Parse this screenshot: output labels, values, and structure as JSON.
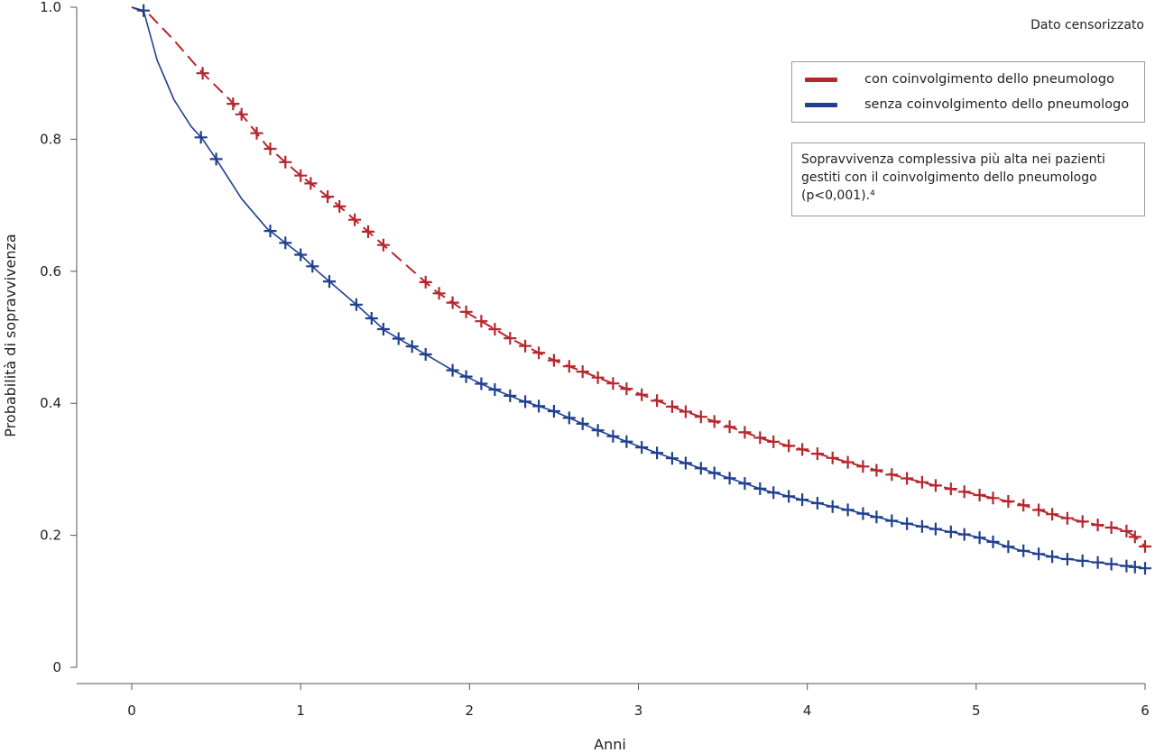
{
  "chart_data": {
    "type": "line",
    "xlabel": "Anni",
    "ylabel": "Probabilità di sopravvivenza",
    "xlim": [
      0,
      6
    ],
    "ylim": [
      0,
      1
    ],
    "xticks": [
      "0",
      "1",
      "2",
      "3",
      "4",
      "5",
      "6"
    ],
    "yticks": [
      "0",
      "0.2",
      "0.4",
      "0.6",
      "0.8",
      "1.0"
    ],
    "ytick_values": [
      0,
      0.2,
      0.4,
      0.6,
      0.8,
      1.0
    ],
    "grid": false,
    "legend_position": "top-right",
    "censor_note": "Dato censorizzato",
    "annotation": "Sopravvivenza complessiva più alta nei pazienti gestiti con il coinvolgimento dello pneumologo (p<0,001).⁴",
    "series": [
      {
        "name": "con coinvolgimento dello pneumologo",
        "color": "#b5272d",
        "line_style": "dashed",
        "x": [
          0,
          0.1,
          0.25,
          0.42,
          0.58,
          0.8,
          1.0,
          1.2,
          1.4,
          1.6,
          1.8,
          2.0,
          2.25,
          2.5,
          2.75,
          3.0,
          3.25,
          3.5,
          3.75,
          4.0,
          4.25,
          4.5,
          4.75,
          5.0,
          5.25,
          5.5,
          5.75,
          5.88,
          5.93,
          6.0
        ],
        "y": [
          1.0,
          0.99,
          0.95,
          0.9,
          0.86,
          0.79,
          0.745,
          0.705,
          0.66,
          0.615,
          0.57,
          0.535,
          0.497,
          0.465,
          0.44,
          0.415,
          0.39,
          0.368,
          0.345,
          0.328,
          0.31,
          0.292,
          0.276,
          0.262,
          0.248,
          0.228,
          0.214,
          0.208,
          0.2,
          0.183
        ],
        "censored_x": [
          0.42,
          0.6,
          0.65,
          0.74,
          0.82,
          0.91,
          1.0,
          1.06,
          1.16,
          1.23,
          1.32,
          1.4,
          1.49,
          1.74,
          1.82,
          1.9,
          1.98,
          2.07,
          2.15,
          2.24,
          2.33,
          2.41,
          2.5,
          2.59,
          2.67,
          2.76,
          2.85,
          2.93,
          3.02,
          3.11,
          3.2,
          3.28,
          3.37,
          3.45,
          3.54,
          3.63,
          3.72,
          3.8,
          3.89,
          3.97,
          4.06,
          4.15,
          4.24,
          4.33,
          4.41,
          4.5,
          4.59,
          4.68,
          4.76,
          4.85,
          4.93,
          5.02,
          5.1,
          5.19,
          5.28,
          5.37,
          5.45,
          5.54,
          5.63,
          5.72,
          5.8,
          5.89,
          5.94,
          6.0
        ]
      },
      {
        "name": "senza coinvolgimento dello pneumologo",
        "color": "#1f3f8f",
        "line_style": "solid",
        "x": [
          0,
          0.07,
          0.15,
          0.25,
          0.35,
          0.42,
          0.5,
          0.65,
          0.8,
          0.9,
          1.0,
          1.1,
          1.2,
          1.35,
          1.5,
          1.7,
          1.9,
          2.1,
          2.3,
          2.5,
          2.75,
          3.0,
          3.25,
          3.5,
          3.75,
          4.0,
          4.25,
          4.5,
          4.75,
          5.0,
          5.25,
          5.5,
          5.75,
          6.0
        ],
        "y": [
          1.0,
          0.995,
          0.92,
          0.86,
          0.82,
          0.8,
          0.77,
          0.71,
          0.665,
          0.645,
          0.625,
          0.6,
          0.578,
          0.545,
          0.51,
          0.48,
          0.45,
          0.426,
          0.405,
          0.388,
          0.36,
          0.335,
          0.312,
          0.29,
          0.268,
          0.252,
          0.238,
          0.222,
          0.21,
          0.198,
          0.178,
          0.165,
          0.158,
          0.15
        ],
        "censored_x": [
          0.07,
          0.41,
          0.5,
          0.82,
          0.91,
          1.0,
          1.07,
          1.17,
          1.33,
          1.42,
          1.49,
          1.58,
          1.66,
          1.74,
          1.9,
          1.98,
          2.07,
          2.15,
          2.24,
          2.33,
          2.41,
          2.5,
          2.59,
          2.67,
          2.76,
          2.85,
          2.93,
          3.02,
          3.11,
          3.2,
          3.28,
          3.37,
          3.45,
          3.54,
          3.63,
          3.72,
          3.8,
          3.89,
          3.97,
          4.06,
          4.15,
          4.24,
          4.33,
          4.41,
          4.5,
          4.59,
          4.68,
          4.76,
          4.85,
          4.93,
          5.02,
          5.1,
          5.19,
          5.28,
          5.37,
          5.45,
          5.54,
          5.63,
          5.72,
          5.8,
          5.89,
          5.94,
          6.0
        ]
      }
    ]
  }
}
